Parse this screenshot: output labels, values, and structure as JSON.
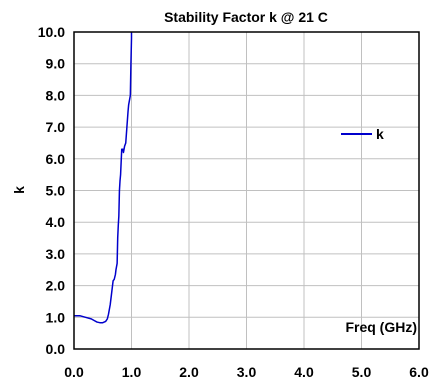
{
  "chart_data": {
    "type": "line",
    "title": "Stability Factor k @ 21 C",
    "xlabel": "Freq (GHz)",
    "ylabel": "k",
    "xlim": [
      0.0,
      6.0
    ],
    "ylim": [
      0.0,
      10.0
    ],
    "x_ticks": [
      "0.0",
      "1.0",
      "2.0",
      "3.0",
      "4.0",
      "5.0",
      "6.0"
    ],
    "y_ticks": [
      "0.0",
      "1.0",
      "2.0",
      "3.0",
      "4.0",
      "5.0",
      "6.0",
      "7.0",
      "8.0",
      "9.0",
      "10.0"
    ],
    "grid": true,
    "legend_position": "right",
    "series": [
      {
        "name": "k",
        "color": "#0000cc",
        "x": [
          0.0,
          0.1,
          0.2,
          0.3,
          0.35,
          0.4,
          0.45,
          0.5,
          0.55,
          0.58,
          0.6,
          0.63,
          0.65,
          0.68,
          0.7,
          0.72,
          0.73,
          0.75,
          0.76,
          0.77,
          0.78,
          0.79,
          0.8,
          0.81,
          0.83,
          0.85,
          0.86,
          0.88,
          0.9,
          0.92,
          0.94,
          0.95,
          0.96,
          0.97,
          0.98,
          0.99,
          1.0,
          1.0
        ],
        "y": [
          1.05,
          1.05,
          1.0,
          0.95,
          0.9,
          0.85,
          0.83,
          0.83,
          0.87,
          0.95,
          1.1,
          1.4,
          1.7,
          2.15,
          2.2,
          2.35,
          2.5,
          2.7,
          3.5,
          3.9,
          4.2,
          5.0,
          5.3,
          5.5,
          6.3,
          6.3,
          6.2,
          6.4,
          6.5,
          7.0,
          7.5,
          7.7,
          7.8,
          7.9,
          8.0,
          9.0,
          9.8,
          10.0
        ]
      }
    ]
  }
}
